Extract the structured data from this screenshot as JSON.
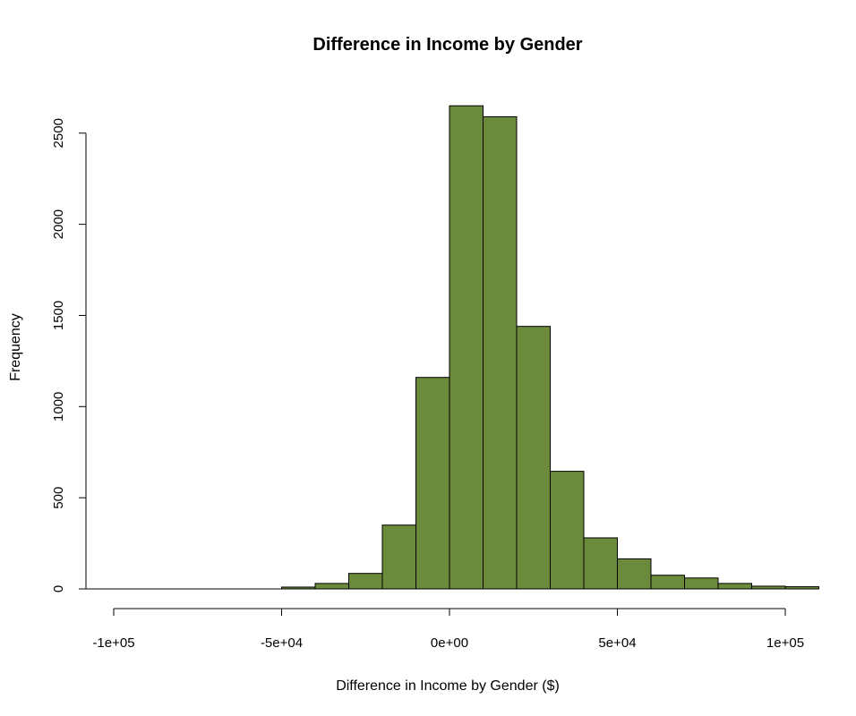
{
  "chart_data": {
    "type": "bar",
    "title": "Difference in Income by Gender",
    "xlabel": "Difference in Income by Gender ($)",
    "ylabel": "Frequency",
    "bar_color": "#6b8a3b",
    "bin_width": 10000,
    "x": [
      -105000,
      -95000,
      -85000,
      -75000,
      -65000,
      -55000,
      -45000,
      -35000,
      -25000,
      -15000,
      -5000,
      5000,
      15000,
      25000,
      35000,
      45000,
      55000,
      65000,
      75000,
      85000,
      95000,
      105000
    ],
    "values": [
      0,
      0,
      0,
      0,
      0,
      0,
      10,
      30,
      85,
      350,
      1160,
      2650,
      2590,
      1440,
      645,
      280,
      165,
      75,
      60,
      30,
      15,
      12
    ],
    "xlim": [
      -110000,
      110000
    ],
    "ylim": [
      0,
      2650
    ],
    "xticks": [
      -100000,
      -50000,
      0,
      50000,
      100000
    ],
    "xtick_labels": [
      "-1e+05",
      "-5e+04",
      "0e+00",
      "5e+04",
      "1e+05"
    ],
    "yticks": [
      0,
      500,
      1000,
      1500,
      2000,
      2500
    ],
    "ytick_labels": [
      "0",
      "500",
      "1000",
      "1500",
      "2000",
      "2500"
    ]
  }
}
